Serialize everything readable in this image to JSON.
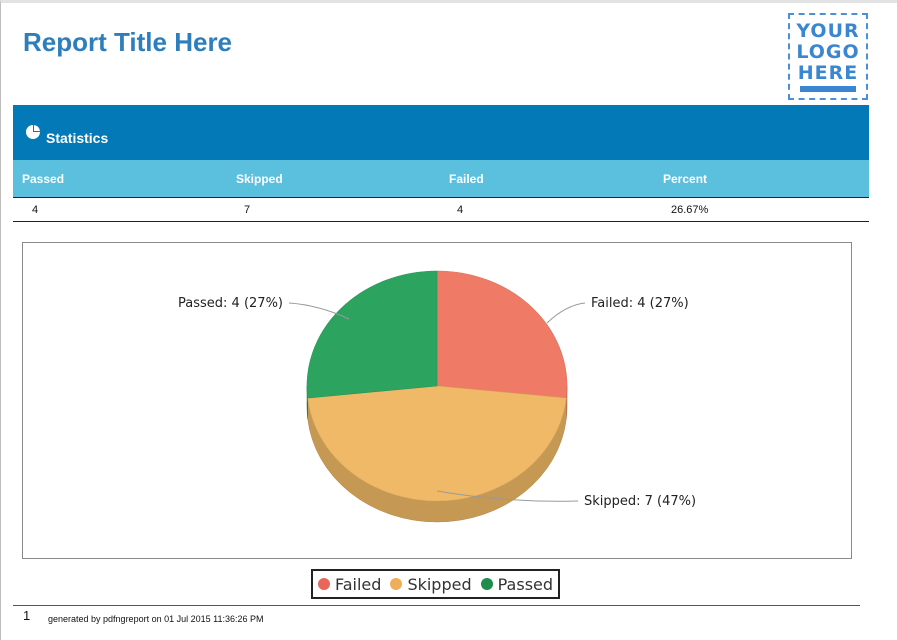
{
  "report": {
    "title": "Report Title Here"
  },
  "logo": {
    "lines": [
      "YOUR",
      "LOGO",
      "HERE"
    ],
    "color": "#3a86d1"
  },
  "statistics": {
    "section_title": "Statistics",
    "section_icon": "pie-chart-icon",
    "columns": [
      "Passed",
      "Skipped",
      "Failed",
      "Percent"
    ],
    "values": [
      "4",
      "7",
      "4",
      "26.67%"
    ],
    "header_color": "#0479b8",
    "column_header_color": "#5bbfde"
  },
  "chart_data": {
    "type": "pie",
    "categories": [
      "Failed",
      "Skipped",
      "Passed"
    ],
    "values": [
      4,
      7,
      4
    ],
    "labels": [
      "Failed: 4 (27%)",
      "Skipped: 7 (47%)",
      "Passed: 4 (27%)"
    ],
    "colors": [
      "#ef7b66",
      "#f0b967",
      "#2ca460"
    ],
    "legend_position": "bottom-center",
    "style": "3d"
  },
  "legend": {
    "items": [
      {
        "label": "Failed",
        "color": "#e8675a"
      },
      {
        "label": "Skipped",
        "color": "#efae5a"
      },
      {
        "label": "Passed",
        "color": "#1e8c4a"
      }
    ]
  },
  "footer": {
    "page_number": "1",
    "generated_text": "generated by pdfngreport  on 01 Jul 2015 11:36:26 PM"
  }
}
